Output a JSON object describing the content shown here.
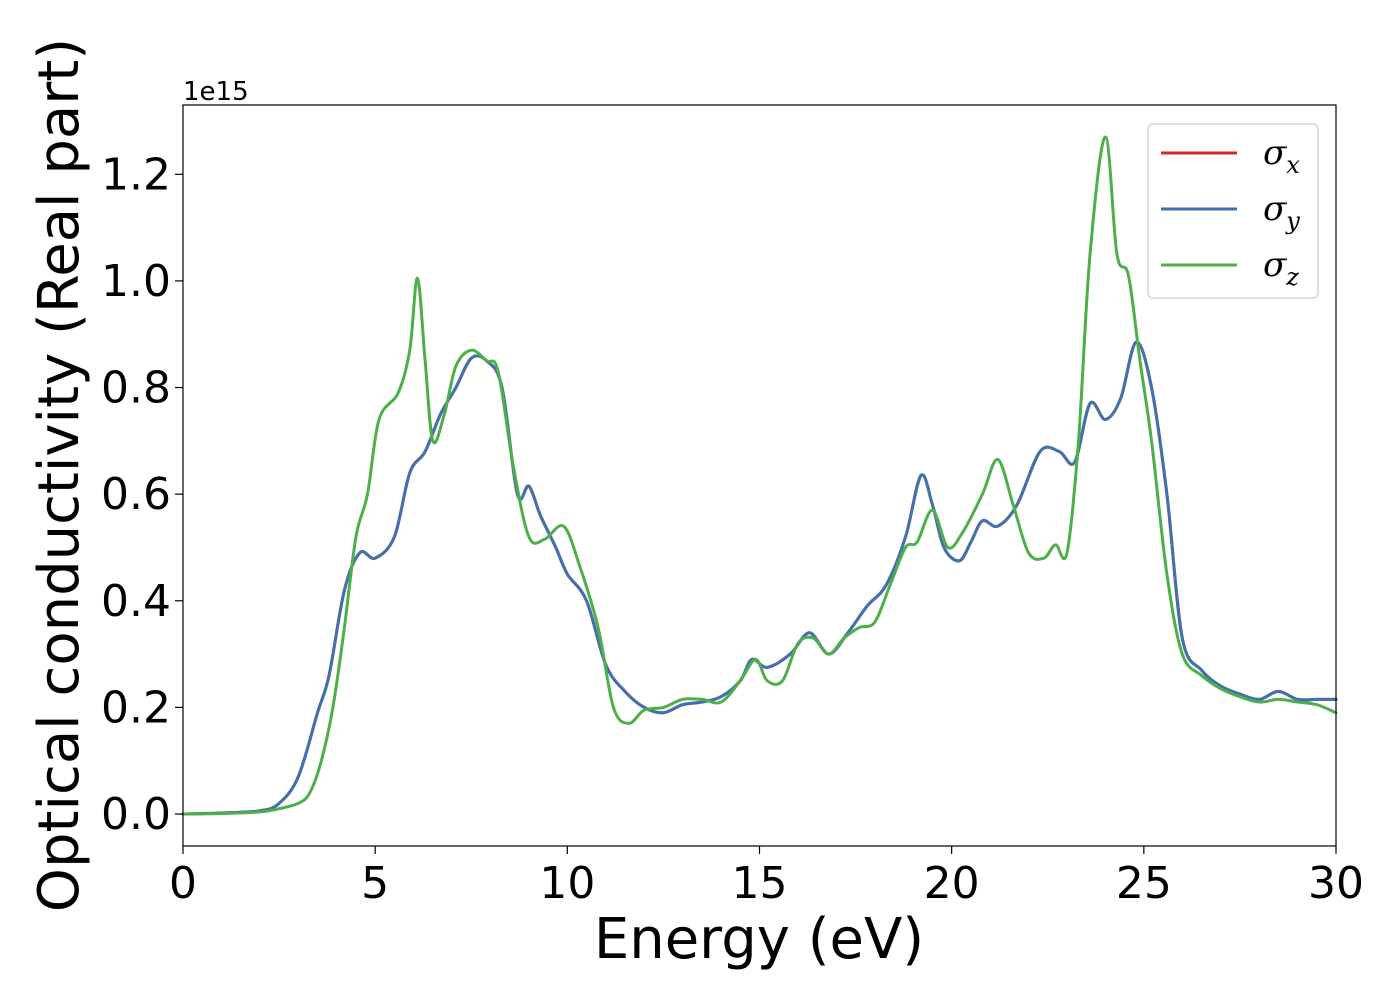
{
  "chart_data": {
    "type": "line",
    "title": "",
    "xlabel": "Energy (eV)",
    "ylabel": "Optical conductivity (Real part)",
    "y_offset_label": "1e15",
    "xlim": [
      0,
      30
    ],
    "ylim": [
      -0.06,
      1.33
    ],
    "xticks": [
      0,
      5,
      10,
      15,
      20,
      25,
      30
    ],
    "xtick_labels": [
      "0",
      "5",
      "10",
      "15",
      "20",
      "25",
      "30"
    ],
    "yticks": [
      0.0,
      0.2,
      0.4,
      0.6,
      0.8,
      1.0,
      1.2
    ],
    "ytick_labels": [
      "0.0",
      "0.2",
      "0.4",
      "0.6",
      "0.8",
      "1.0",
      "1.2"
    ],
    "grid": false,
    "legend_position": "top-right",
    "series": [
      {
        "name": "σx",
        "legend_symbol": "σ",
        "legend_subscript": "x",
        "color": "#d62728",
        "x": [
          0,
          1,
          2,
          2.5,
          3,
          3.5,
          3.8,
          4.2,
          4.6,
          5.0,
          5.5,
          5.9,
          6.3,
          6.7,
          7.1,
          7.5,
          7.9,
          8.3,
          8.7,
          9.0,
          9.3,
          9.7,
          10.0,
          10.5,
          11.0,
          11.5,
          12.0,
          12.5,
          13.0,
          13.5,
          14.0,
          14.5,
          14.8,
          15.2,
          15.8,
          16.3,
          16.8,
          17.3,
          17.8,
          18.3,
          18.8,
          19.2,
          19.5,
          19.8,
          20.2,
          20.5,
          20.8,
          21.2,
          21.7,
          22.3,
          22.8,
          23.2,
          23.6,
          24.0,
          24.4,
          24.8,
          25.2,
          25.6,
          26.0,
          26.5,
          27.0,
          27.5,
          28.0,
          28.5,
          29.0,
          29.5,
          30.0
        ],
        "y": [
          0.0,
          0.002,
          0.006,
          0.02,
          0.07,
          0.19,
          0.26,
          0.42,
          0.49,
          0.48,
          0.52,
          0.64,
          0.68,
          0.75,
          0.8,
          0.855,
          0.85,
          0.8,
          0.6,
          0.615,
          0.56,
          0.5,
          0.45,
          0.4,
          0.28,
          0.23,
          0.2,
          0.19,
          0.205,
          0.21,
          0.22,
          0.25,
          0.29,
          0.275,
          0.3,
          0.34,
          0.3,
          0.34,
          0.39,
          0.43,
          0.52,
          0.635,
          0.58,
          0.5,
          0.475,
          0.51,
          0.55,
          0.54,
          0.58,
          0.68,
          0.68,
          0.66,
          0.77,
          0.74,
          0.78,
          0.885,
          0.8,
          0.6,
          0.33,
          0.27,
          0.24,
          0.225,
          0.215,
          0.23,
          0.215,
          0.215,
          0.215
        ]
      },
      {
        "name": "σy",
        "legend_symbol": "σ",
        "legend_subscript": "y",
        "color": "#3f72af",
        "x": [
          0,
          1,
          2,
          2.5,
          3,
          3.5,
          3.8,
          4.2,
          4.6,
          5.0,
          5.5,
          5.9,
          6.3,
          6.7,
          7.1,
          7.5,
          7.9,
          8.3,
          8.7,
          9.0,
          9.3,
          9.7,
          10.0,
          10.5,
          11.0,
          11.5,
          12.0,
          12.5,
          13.0,
          13.5,
          14.0,
          14.5,
          14.8,
          15.2,
          15.8,
          16.3,
          16.8,
          17.3,
          17.8,
          18.3,
          18.8,
          19.2,
          19.5,
          19.8,
          20.2,
          20.5,
          20.8,
          21.2,
          21.7,
          22.3,
          22.8,
          23.2,
          23.6,
          24.0,
          24.4,
          24.8,
          25.2,
          25.6,
          26.0,
          26.5,
          27.0,
          27.5,
          28.0,
          28.5,
          29.0,
          29.5,
          30.0
        ],
        "y": [
          0.0,
          0.002,
          0.006,
          0.02,
          0.07,
          0.19,
          0.26,
          0.42,
          0.49,
          0.48,
          0.52,
          0.64,
          0.68,
          0.75,
          0.8,
          0.855,
          0.85,
          0.8,
          0.6,
          0.615,
          0.56,
          0.5,
          0.45,
          0.4,
          0.28,
          0.23,
          0.2,
          0.19,
          0.205,
          0.21,
          0.22,
          0.25,
          0.29,
          0.275,
          0.3,
          0.34,
          0.3,
          0.34,
          0.39,
          0.43,
          0.52,
          0.635,
          0.58,
          0.5,
          0.475,
          0.51,
          0.55,
          0.54,
          0.58,
          0.68,
          0.68,
          0.66,
          0.77,
          0.74,
          0.78,
          0.885,
          0.8,
          0.6,
          0.33,
          0.27,
          0.24,
          0.225,
          0.215,
          0.23,
          0.215,
          0.215,
          0.215
        ]
      },
      {
        "name": "σz",
        "legend_symbol": "σ",
        "legend_subscript": "z",
        "color": "#4daf4a",
        "x": [
          0,
          1,
          2,
          2.5,
          3,
          3.3,
          3.6,
          3.9,
          4.2,
          4.5,
          4.8,
          5.1,
          5.6,
          5.9,
          6.1,
          6.3,
          6.5,
          6.8,
          7.1,
          7.5,
          7.9,
          8.2,
          8.6,
          9.0,
          9.4,
          9.9,
          10.3,
          10.8,
          11.2,
          11.6,
          12.0,
          12.5,
          13.0,
          13.5,
          14.0,
          14.5,
          14.9,
          15.2,
          15.6,
          16.0,
          16.4,
          16.8,
          17.2,
          17.6,
          18.0,
          18.4,
          18.8,
          19.1,
          19.5,
          19.9,
          20.3,
          20.8,
          21.2,
          21.6,
          22.0,
          22.4,
          22.7,
          23.0,
          23.3,
          23.6,
          24.0,
          24.3,
          24.6,
          24.9,
          25.2,
          25.6,
          26.0,
          26.5,
          27.0,
          27.5,
          28.0,
          28.5,
          29.0,
          29.5,
          30.0
        ],
        "y": [
          0.0,
          0.001,
          0.004,
          0.01,
          0.02,
          0.04,
          0.1,
          0.2,
          0.35,
          0.52,
          0.6,
          0.74,
          0.79,
          0.87,
          1.005,
          0.85,
          0.7,
          0.75,
          0.84,
          0.87,
          0.85,
          0.83,
          0.65,
          0.52,
          0.515,
          0.54,
          0.47,
          0.35,
          0.2,
          0.17,
          0.195,
          0.2,
          0.215,
          0.215,
          0.21,
          0.25,
          0.29,
          0.25,
          0.25,
          0.32,
          0.33,
          0.3,
          0.33,
          0.35,
          0.36,
          0.43,
          0.5,
          0.51,
          0.57,
          0.5,
          0.53,
          0.6,
          0.665,
          0.58,
          0.49,
          0.48,
          0.505,
          0.49,
          0.7,
          1.05,
          1.27,
          1.05,
          1.01,
          0.85,
          0.7,
          0.45,
          0.3,
          0.26,
          0.235,
          0.22,
          0.21,
          0.215,
          0.21,
          0.205,
          0.19
        ]
      }
    ]
  }
}
